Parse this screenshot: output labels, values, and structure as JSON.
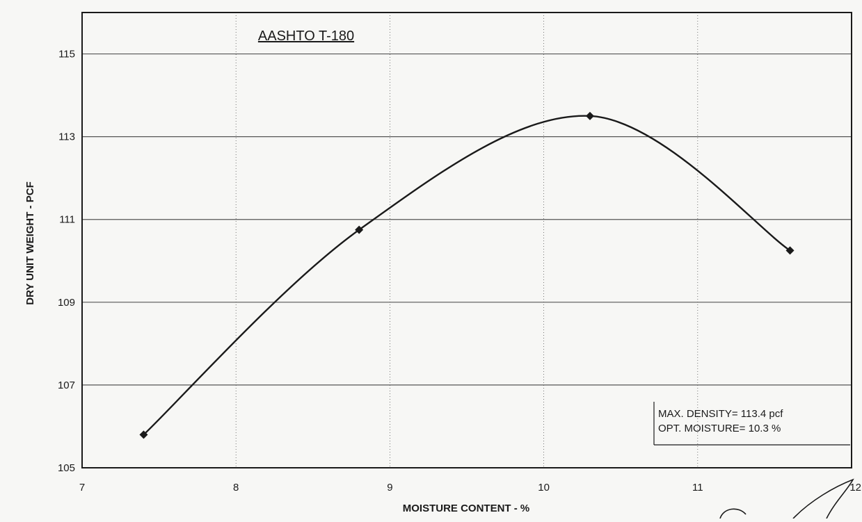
{
  "chart_data": {
    "type": "line",
    "title": "AASHTO T-180",
    "xlabel": "MOISTURE CONTENT - %",
    "ylabel": "DRY UNIT WEIGHT - PCF",
    "xlim": [
      7,
      12
    ],
    "ylim": [
      105,
      116
    ],
    "xticks": [
      "7",
      "8",
      "9",
      "10",
      "11",
      "12"
    ],
    "yticks": [
      "105",
      "107",
      "109",
      "111",
      "113",
      "115"
    ],
    "grid": true,
    "series": [
      {
        "x": [
          7.4,
          8.8,
          10.3,
          11.6
        ],
        "y": [
          105.8,
          110.75,
          113.5,
          110.25
        ]
      }
    ],
    "annotations": {
      "max_density": "MAX. DENSITY= 113.4 pcf",
      "opt_moisture": "OPT. MOISTURE= 10.3 %"
    },
    "colors": {
      "line": "#1a1a1a",
      "marker": "#1a1a1a",
      "grid": "#555555"
    }
  }
}
